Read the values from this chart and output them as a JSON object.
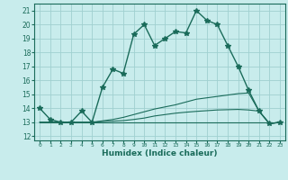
{
  "xlabel": "Humidex (Indice chaleur)",
  "bg_color": "#c8ecec",
  "grid_color": "#a0d0d0",
  "line_color": "#1a6b5a",
  "x_ticks": [
    0,
    1,
    2,
    3,
    4,
    5,
    6,
    7,
    8,
    9,
    10,
    11,
    12,
    13,
    14,
    15,
    16,
    17,
    18,
    19,
    20,
    21,
    22,
    23
  ],
  "y_ticks": [
    12,
    13,
    14,
    15,
    16,
    17,
    18,
    19,
    20,
    21
  ],
  "ylim": [
    11.7,
    21.5
  ],
  "xlim": [
    -0.5,
    23.5
  ],
  "series": [
    {
      "x": [
        0,
        1,
        2,
        3,
        4,
        5,
        6,
        7,
        8,
        9,
        10,
        11,
        12,
        13,
        14,
        15,
        16,
        17,
        18,
        19,
        20,
        21,
        22,
        23
      ],
      "y": [
        14.0,
        13.2,
        13.0,
        13.0,
        13.8,
        13.0,
        15.5,
        16.8,
        16.5,
        19.3,
        20.0,
        18.5,
        19.0,
        19.5,
        19.4,
        21.0,
        20.3,
        20.0,
        18.5,
        17.0,
        15.3,
        13.8,
        12.9,
        13.0
      ],
      "marker": "*",
      "lw": 1.0,
      "ms": 4
    },
    {
      "x": [
        0,
        1,
        2,
        3,
        4,
        5,
        6,
        7,
        8,
        9,
        10,
        11,
        12,
        13,
        14,
        15,
        16,
        17,
        18,
        19,
        20,
        21,
        22,
        23
      ],
      "y": [
        13.0,
        13.0,
        13.0,
        13.0,
        13.0,
        13.0,
        13.0,
        13.0,
        13.0,
        13.0,
        13.0,
        13.0,
        13.0,
        13.0,
        13.0,
        13.0,
        13.0,
        13.0,
        13.0,
        13.0,
        13.0,
        13.0,
        13.0,
        13.0
      ],
      "marker": null,
      "lw": 0.8,
      "ms": 0
    },
    {
      "x": [
        0,
        1,
        2,
        3,
        4,
        5,
        6,
        7,
        8,
        9,
        10,
        11,
        12,
        13,
        14,
        15,
        16,
        17,
        18,
        19,
        20,
        21,
        22,
        23
      ],
      "y": [
        13.0,
        13.0,
        13.0,
        13.0,
        13.0,
        13.0,
        13.1,
        13.2,
        13.35,
        13.55,
        13.75,
        13.95,
        14.1,
        14.25,
        14.45,
        14.65,
        14.75,
        14.85,
        14.95,
        15.05,
        15.1,
        13.8,
        12.9,
        13.0
      ],
      "marker": null,
      "lw": 0.8,
      "ms": 0
    },
    {
      "x": [
        0,
        1,
        2,
        3,
        4,
        5,
        6,
        7,
        8,
        9,
        10,
        11,
        12,
        13,
        14,
        15,
        16,
        17,
        18,
        19,
        20,
        21,
        22,
        23
      ],
      "y": [
        13.0,
        13.0,
        13.0,
        13.0,
        13.0,
        13.0,
        13.05,
        13.08,
        13.12,
        13.2,
        13.3,
        13.45,
        13.55,
        13.65,
        13.72,
        13.78,
        13.83,
        13.88,
        13.9,
        13.92,
        13.88,
        13.8,
        12.9,
        13.0
      ],
      "marker": null,
      "lw": 0.8,
      "ms": 0
    }
  ]
}
